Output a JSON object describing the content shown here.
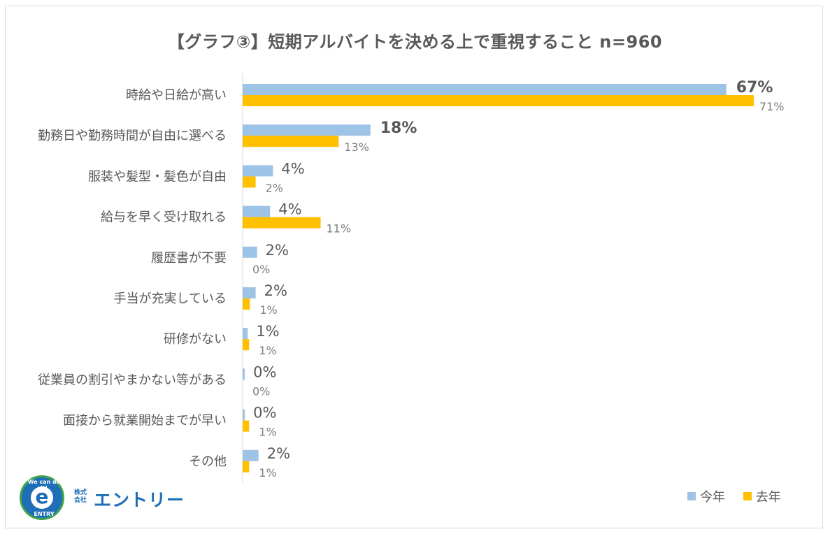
{
  "chart_data": {
    "type": "bar",
    "orientation": "horizontal",
    "title": "【グラフ③】短期アルバイトを決める上で重視すること n=960",
    "categories": [
      "時給や日給が高い",
      "勤務日や勤務時間が自由に選べる",
      "服装や髪型・髪色が自由",
      "給与を早く受け取れる",
      "履歴書が不要",
      "手当が充実している",
      "研修がない",
      "従業員の割引やまかない等がある",
      "面接から就業開始までが早い",
      "その他"
    ],
    "series": [
      {
        "name": "今年",
        "color": "#9dc3e6",
        "values": [
          67,
          18,
          4,
          4,
          2,
          2,
          1,
          0,
          0,
          2
        ],
        "exact_values": [
          67.0,
          17.7,
          4.2,
          3.8,
          2.0,
          1.8,
          0.7,
          0.3,
          0.3,
          2.2
        ],
        "labels": [
          "67%",
          "18%",
          "4%",
          "4%",
          "2%",
          "2%",
          "1%",
          "0%",
          "0%",
          "2%"
        ]
      },
      {
        "name": "去年",
        "color": "#ffc000",
        "values": [
          71,
          13,
          2,
          11,
          0,
          1,
          1,
          0,
          1,
          1
        ],
        "exact_values": [
          70.8,
          13.3,
          1.8,
          10.8,
          0.0,
          1.0,
          0.9,
          0.0,
          0.9,
          0.9
        ],
        "labels": [
          "71%",
          "13%",
          "2%",
          "11%",
          "0%",
          "1%",
          "1%",
          "0%",
          "1%",
          "1%"
        ]
      }
    ],
    "xlim": [
      0,
      100
    ],
    "xlabel": "",
    "ylabel": "",
    "grid": false,
    "legend": "bottom-right"
  },
  "legend": {
    "current": "今年",
    "previous": "去年"
  },
  "logo": {
    "top_text": "We can do it!",
    "bottom_text": "ENTRY",
    "letter": "e",
    "prefix_line1": "株式",
    "prefix_line2": "会社",
    "company_name": "エントリー"
  }
}
